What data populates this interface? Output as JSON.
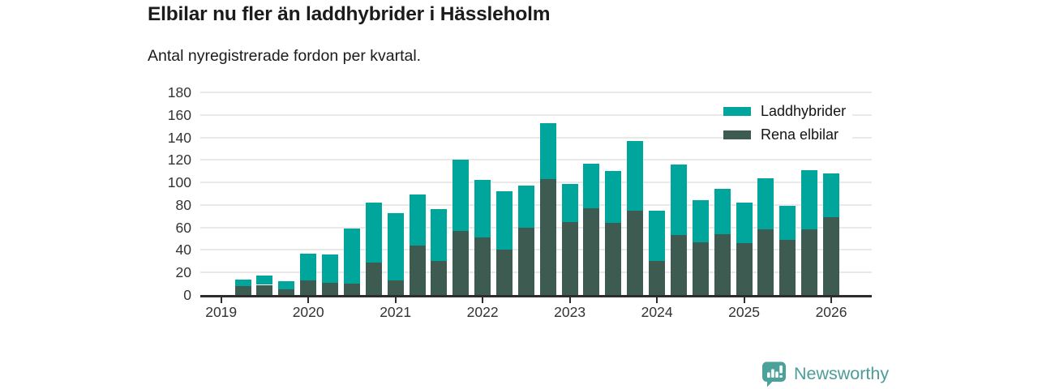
{
  "header": {
    "title": "Elbilar nu fler än laddhybrider i Hässleholm",
    "subtitle": "Antal nyregistrerade fordon per kvartal."
  },
  "footer": {
    "brand": "Newsworthy",
    "brand_color": "#4d9c98",
    "logo_icon": "newsworthy-bar-chart-badge-icon"
  },
  "chart_data": {
    "type": "stacked-bar",
    "title": "Elbilar nu fler än laddhybrider i Hässleholm",
    "subtitle": "Antal nyregistrerade fordon per kvartal.",
    "categories": [
      "2019 Q1",
      "2019 Q2",
      "2019 Q3",
      "2019 Q4",
      "2020 Q1",
      "2020 Q2",
      "2020 Q3",
      "2020 Q4",
      "2021 Q1",
      "2021 Q2",
      "2021 Q3",
      "2021 Q4",
      "2022 Q1",
      "2022 Q2",
      "2022 Q3",
      "2022 Q4",
      "2023 Q1",
      "2023 Q2",
      "2023 Q3",
      "2023 Q4",
      "2024 Q1",
      "2024 Q2",
      "2024 Q3",
      "2024 Q4",
      "2025 Q1",
      "2025 Q2",
      "2025 Q3",
      "2025 Q4",
      "2026 Q1"
    ],
    "series": [
      {
        "name": "Laddhybrider",
        "color": "#00a69c",
        "values": [
          0,
          6,
          8,
          7,
          24,
          25,
          49,
          53,
          60,
          45,
          46,
          63,
          51,
          52,
          37,
          50,
          34,
          40,
          46,
          62,
          45,
          63,
          37,
          40,
          36,
          46,
          30,
          53,
          39
        ]
      },
      {
        "name": "Rena elbilar",
        "color": "#3e5b52",
        "values": [
          0,
          8,
          9,
          5,
          13,
          11,
          10,
          29,
          13,
          44,
          30,
          57,
          51,
          40,
          60,
          103,
          65,
          77,
          64,
          75,
          30,
          53,
          47,
          54,
          46,
          58,
          49,
          58,
          69
        ]
      }
    ],
    "stack_order_bottom_to_top": [
      "Rena elbilar",
      "Laddhybrider"
    ],
    "totals": [
      0,
      14,
      17,
      12,
      37,
      36,
      59,
      82,
      73,
      89,
      76,
      120,
      102,
      92,
      97,
      153,
      99,
      117,
      110,
      137,
      75,
      116,
      84,
      94,
      82,
      104,
      79,
      111,
      108
    ],
    "ylim": [
      0,
      180
    ],
    "yticks": [
      0,
      20,
      40,
      60,
      80,
      100,
      120,
      140,
      160,
      180
    ],
    "xticks": [
      {
        "index": 0,
        "label": "2019"
      },
      {
        "index": 4,
        "label": "2020"
      },
      {
        "index": 8,
        "label": "2021"
      },
      {
        "index": 12,
        "label": "2022"
      },
      {
        "index": 16,
        "label": "2023"
      },
      {
        "index": 20,
        "label": "2024"
      },
      {
        "index": 24,
        "label": "2025"
      },
      {
        "index": 28,
        "label": "2026"
      }
    ],
    "grid": "horizontal",
    "legend_position": "top-right"
  }
}
